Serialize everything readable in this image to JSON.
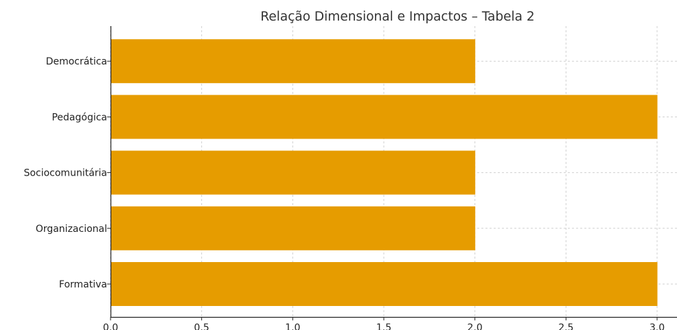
{
  "chart_data": {
    "type": "bar",
    "orientation": "horizontal",
    "title": "Relação Dimensional e Impactos – Tabela 2",
    "categories": [
      "Formativa",
      "Organizacional",
      "Sociocomunitária",
      "Pedagógica",
      "Democrática"
    ],
    "values": [
      3,
      2,
      2,
      3,
      2
    ],
    "xlim": [
      0,
      3.1
    ],
    "xticks": [
      "0.0",
      "0.5",
      "1.0",
      "1.5",
      "2.0",
      "2.5",
      "3.0"
    ],
    "xlabel": "",
    "ylabel": "",
    "grid": true,
    "bar_color": "#E69C00"
  }
}
